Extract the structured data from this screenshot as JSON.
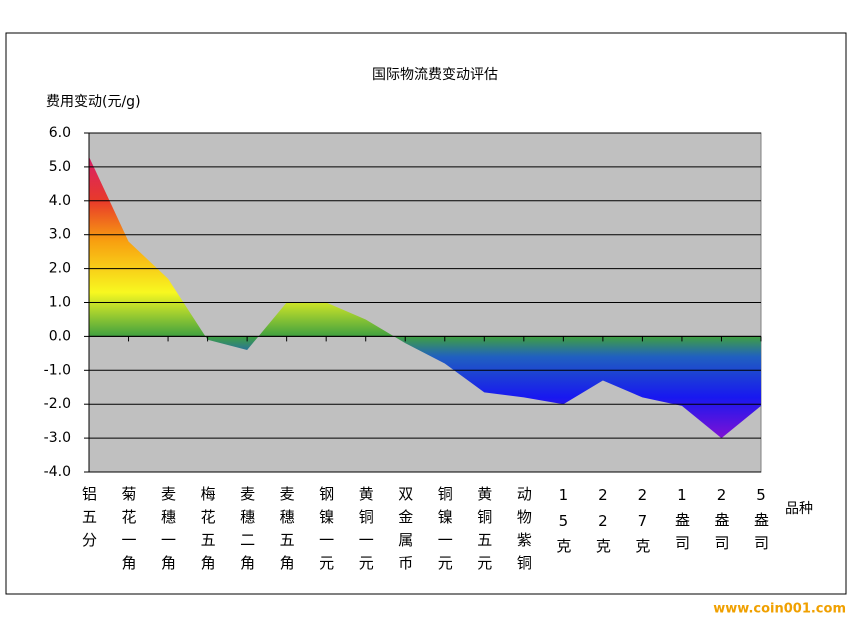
{
  "chart_data": {
    "type": "area",
    "title": "国际物流费变动评估",
    "y_label": "费用变动(元/g)",
    "x_label": "品种",
    "watermark": "www.coin001.com",
    "categories": [
      "铝五分",
      "菊花一角",
      "麦穗一角",
      "梅花五角",
      "麦穗二角",
      "麦穗五角",
      "钢镍一元",
      "黄铜一元",
      "双金属币",
      "铜镍一元",
      "黄铜五元",
      "动物紫铜",
      "15克",
      "22克",
      "27克",
      "1盎司",
      "2盎司",
      "5盎司"
    ],
    "values": [
      5.3,
      2.8,
      1.7,
      -0.1,
      -0.4,
      1.0,
      1.0,
      0.5,
      -0.2,
      -0.8,
      -1.65,
      -1.8,
      -2.0,
      -1.3,
      -1.8,
      -2.05,
      -3.0,
      -2.05
    ],
    "ylim": [
      -4,
      6
    ],
    "yticks": [
      {
        "value": -4,
        "label": "-4.0"
      },
      {
        "value": -3,
        "label": "-3.0"
      },
      {
        "value": -2,
        "label": "-2.0"
      },
      {
        "value": -1,
        "label": "-1.0"
      },
      {
        "value": 0,
        "label": "0.0"
      },
      {
        "value": 1,
        "label": "1.0"
      },
      {
        "value": 2,
        "label": "2.0"
      },
      {
        "value": 3,
        "label": "3.0"
      },
      {
        "value": 4,
        "label": "4.0"
      },
      {
        "value": 5,
        "label": "5.0"
      },
      {
        "value": 6,
        "label": "6.0"
      }
    ],
    "grid": true
  }
}
